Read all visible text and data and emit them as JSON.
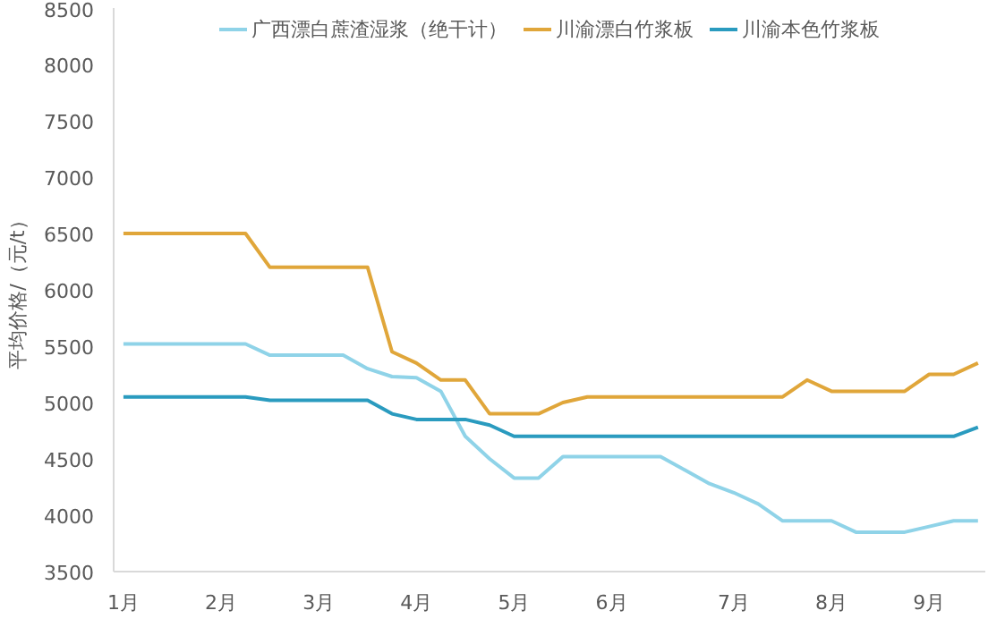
{
  "chart_data": {
    "type": "line",
    "ylabel": "平均价格/（元/t）",
    "categories": [
      "1月",
      null,
      null,
      null,
      "2月",
      null,
      null,
      null,
      "3月",
      null,
      null,
      null,
      "4月",
      null,
      null,
      null,
      "5月",
      null,
      null,
      null,
      "6月",
      null,
      null,
      null,
      null,
      "7月",
      null,
      null,
      null,
      "8月",
      null,
      null,
      null,
      "9月",
      null,
      null
    ],
    "series": [
      {
        "name": "广西漂白蔗渣湿浆（绝干计）",
        "color": "#8fd3e8",
        "values": [
          5520,
          5520,
          5520,
          5520,
          5520,
          5520,
          5420,
          5420,
          5420,
          5420,
          5300,
          5230,
          5220,
          5100,
          4700,
          4500,
          4330,
          4330,
          4520,
          4520,
          4520,
          4520,
          4520,
          4400,
          4280,
          4200,
          4100,
          3950,
          3950,
          3950,
          3850,
          3850,
          3850,
          3900,
          3950,
          3950
        ]
      },
      {
        "name": "川渝漂白竹浆板",
        "color": "#e0a63a",
        "values": [
          6500,
          6500,
          6500,
          6500,
          6500,
          6500,
          6200,
          6200,
          6200,
          6200,
          6200,
          5450,
          5350,
          5200,
          5200,
          4900,
          4900,
          4900,
          5000,
          5050,
          5050,
          5050,
          5050,
          5050,
          5050,
          5050,
          5050,
          5050,
          5200,
          5100,
          5100,
          5100,
          5100,
          5250,
          5250,
          5350
        ]
      },
      {
        "name": "川渝本色竹浆板",
        "color": "#2a9bbf",
        "values": [
          5050,
          5050,
          5050,
          5050,
          5050,
          5050,
          5020,
          5020,
          5020,
          5020,
          5020,
          4900,
          4850,
          4850,
          4850,
          4800,
          4700,
          4700,
          4700,
          4700,
          4700,
          4700,
          4700,
          4700,
          4700,
          4700,
          4700,
          4700,
          4700,
          4700,
          4700,
          4700,
          4700,
          4700,
          4700,
          4780
        ]
      }
    ],
    "ylim": [
      3500,
      8500
    ],
    "yticks": [
      3500,
      4000,
      4500,
      5000,
      5500,
      6000,
      6500,
      7000,
      7500,
      8000,
      8500
    ],
    "legend": "top",
    "grid": false
  }
}
